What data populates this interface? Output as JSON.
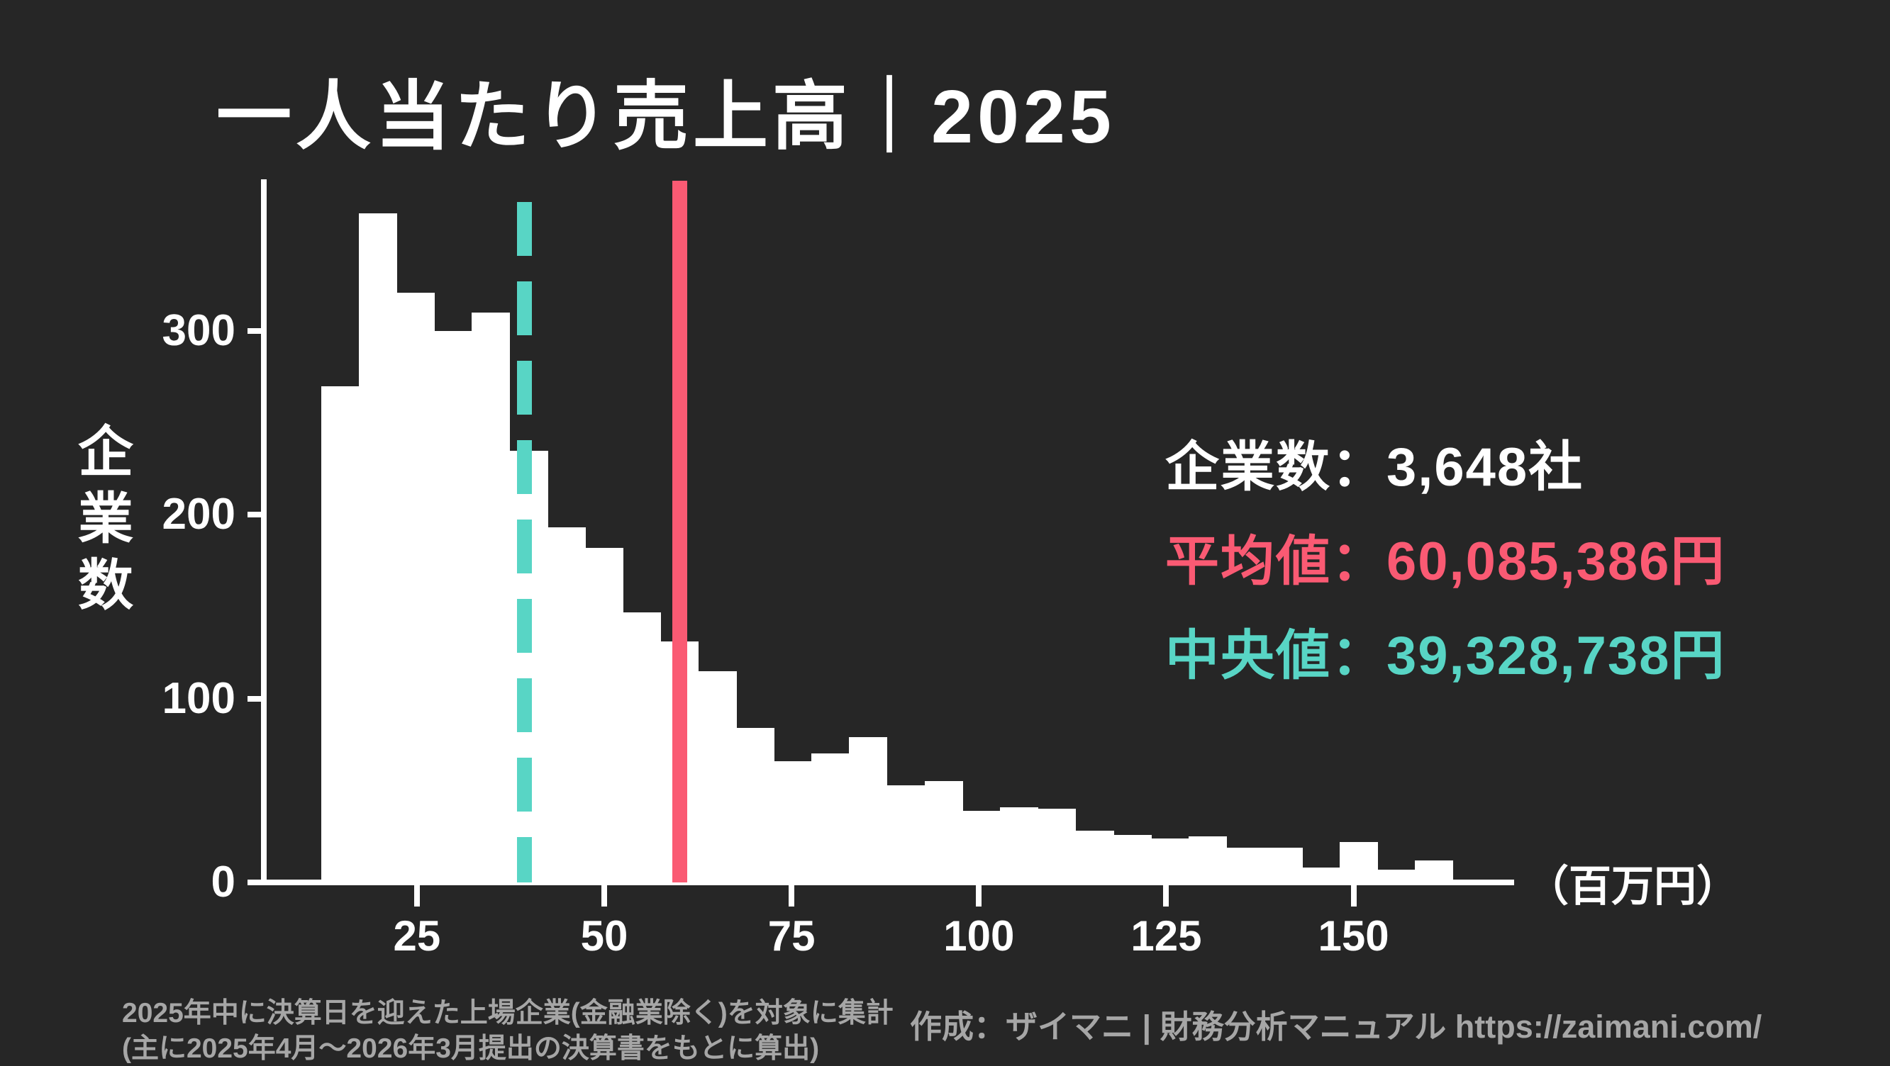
{
  "title": "一人当たり売上高｜2025",
  "stats": {
    "companies_line": "企業数：3,648社",
    "mean_line": "平均値：60,085,386円",
    "median_line": "中央値：39,328,738円"
  },
  "axes": {
    "y_label": "企業数",
    "y_ticks": [
      0,
      100,
      200,
      300
    ],
    "x_ticks": [
      25,
      50,
      75,
      100,
      125,
      150
    ],
    "x_unit": "（百万円）"
  },
  "chart_data": {
    "type": "bar",
    "subtype": "histogram",
    "title": "一人当たり売上高｜2025",
    "xlabel": "百万円",
    "ylabel": "企業数",
    "bin_start": 12.5,
    "bin_width": 5,
    "counts": [
      270,
      364,
      321,
      300,
      310,
      235,
      193,
      182,
      147,
      131,
      115,
      84,
      66,
      70,
      79,
      53,
      55,
      39,
      41,
      40,
      28,
      26,
      24,
      25,
      19,
      19,
      8,
      22,
      7,
      12
    ],
    "total_companies": 3648,
    "mean": 60.085386,
    "median": 39.328738,
    "xlim": [
      4.5,
      171
    ],
    "ylim": [
      0,
      382
    ],
    "grid": false,
    "legend": "none"
  },
  "footnotes": [
    "2025年中に決算日を迎えた上場企業(金融業除く)を対象に集計",
    "(主に2025年4月〜2026年3月提出の決算書をもとに算出)"
  ],
  "credit": "作成：ザイマニ | 財務分析マニュアル https://zaimani.com/",
  "colors": {
    "background": "#262626",
    "bars": "#ffffff",
    "text_white": "#ffffff",
    "mean_pink": "#fa5a73",
    "median_teal": "#58d5c5",
    "footnote_gray": "#a6a6a6"
  }
}
